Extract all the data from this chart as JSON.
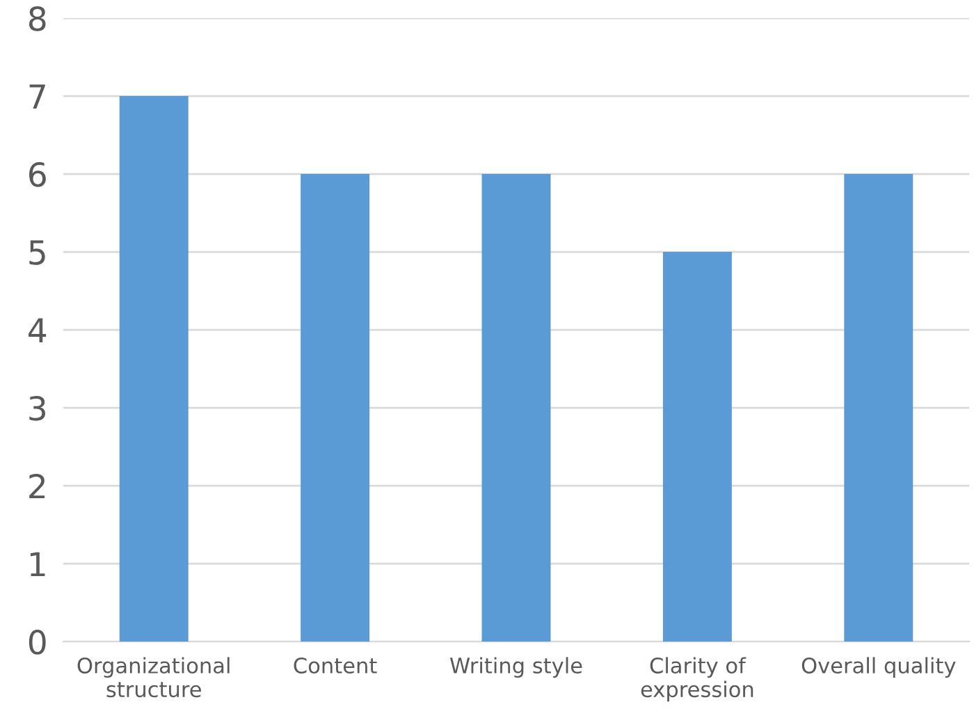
{
  "chart_data": {
    "type": "bar",
    "categories": [
      "Organizational\nstructure",
      "Content",
      "Writing style",
      "Clarity of\nexpression",
      "Overall quality"
    ],
    "values": [
      7,
      6,
      6,
      5,
      6
    ],
    "color": "#5b9bd5",
    "ylim": [
      0,
      8
    ],
    "yticks": [
      0,
      1,
      2,
      3,
      4,
      5,
      6,
      7,
      8
    ],
    "grid": "y",
    "legend": false
  }
}
